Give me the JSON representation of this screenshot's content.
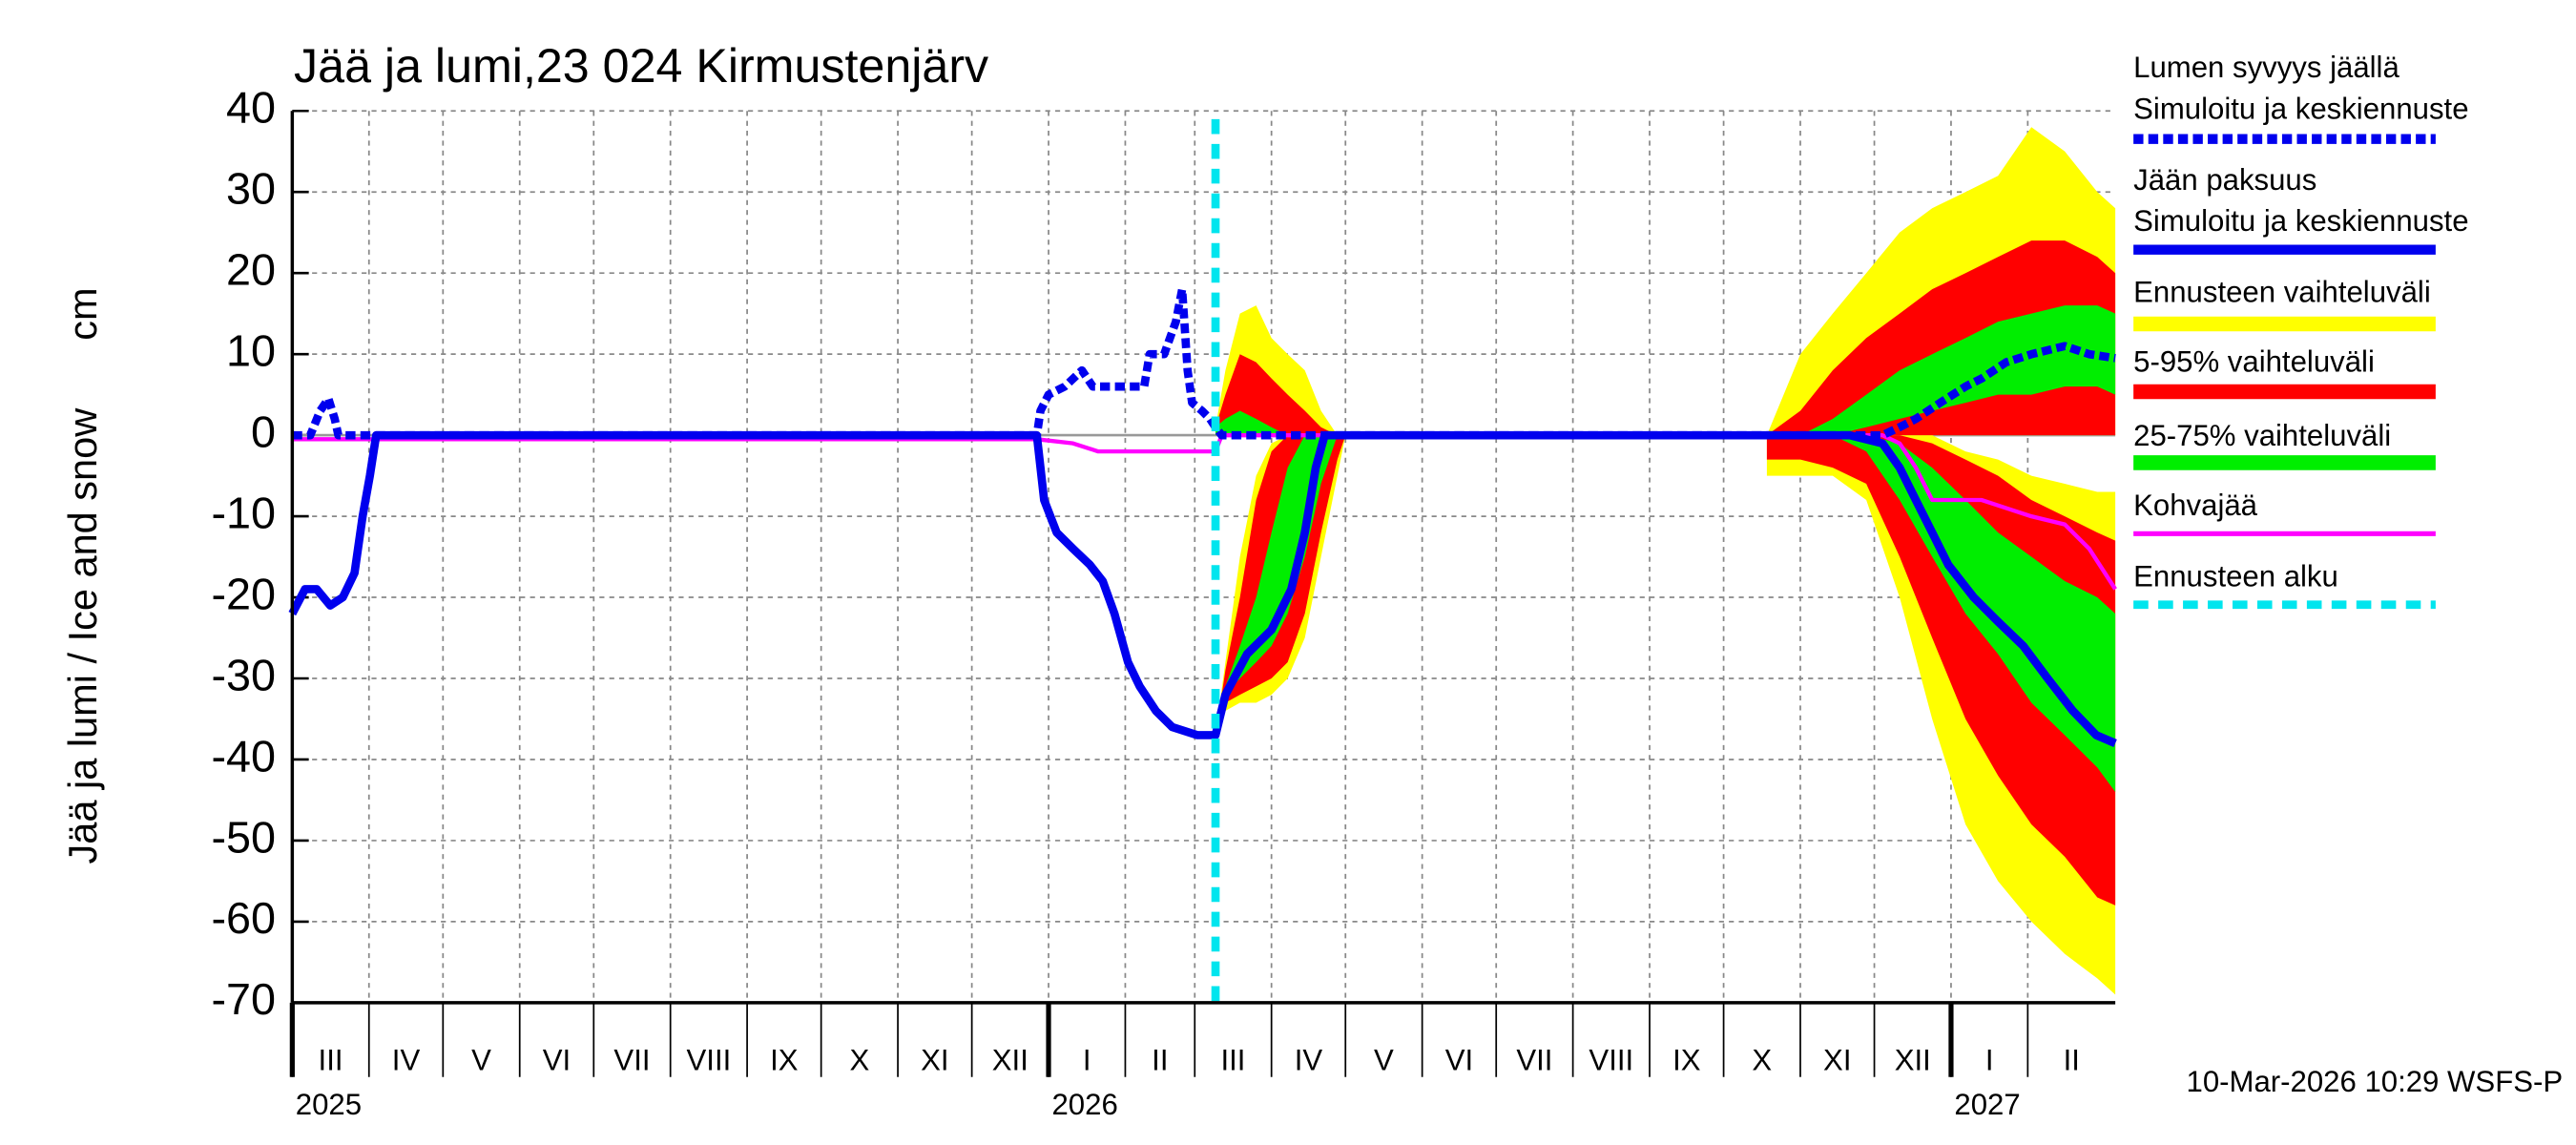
{
  "chart_data": {
    "type": "line",
    "title": "Jää ja lumi,23 024 Kirmustenjärv",
    "ylabel": "Jää ja lumi / Ice and snow",
    "yunit": "cm",
    "footer": "10-Mar-2026 10:29 WSFS-P",
    "xlim": [
      2025.162,
      2027.182
    ],
    "ylim": [
      -70,
      40
    ],
    "yticks": [
      -70,
      -60,
      -50,
      -40,
      -30,
      -20,
      -10,
      0,
      10,
      20,
      30,
      40
    ],
    "grid": true,
    "xticks": [
      {
        "value": 2025.162,
        "label": "III"
      },
      {
        "value": 2025.247,
        "label": "IV"
      },
      {
        "value": 2025.329,
        "label": "V"
      },
      {
        "value": 2025.414,
        "label": "VI"
      },
      {
        "value": 2025.496,
        "label": "VII"
      },
      {
        "value": 2025.581,
        "label": "VIII"
      },
      {
        "value": 2025.666,
        "label": "IX"
      },
      {
        "value": 2025.748,
        "label": "X"
      },
      {
        "value": 2025.833,
        "label": "XI"
      },
      {
        "value": 2025.915,
        "label": "XII"
      },
      {
        "value": 2026.0,
        "label": "I"
      },
      {
        "value": 2026.085,
        "label": "II"
      },
      {
        "value": 2026.162,
        "label": "III"
      },
      {
        "value": 2026.247,
        "label": "IV"
      },
      {
        "value": 2026.329,
        "label": "V"
      },
      {
        "value": 2026.414,
        "label": "VI"
      },
      {
        "value": 2026.496,
        "label": "VII"
      },
      {
        "value": 2026.581,
        "label": "VIII"
      },
      {
        "value": 2026.666,
        "label": "IX"
      },
      {
        "value": 2026.748,
        "label": "X"
      },
      {
        "value": 2026.833,
        "label": "XI"
      },
      {
        "value": 2026.915,
        "label": "XII"
      },
      {
        "value": 2027.0,
        "label": "I"
      },
      {
        "value": 2027.085,
        "label": "II"
      }
    ],
    "year_ticks": [
      {
        "value": 2025.162,
        "label": "2025"
      },
      2026,
      2027
    ],
    "forecast_start": {
      "name": "Ennusteen alku",
      "x": 2026.185,
      "color": "#00e5ee"
    },
    "series": [
      {
        "name": "Lumen syvyys jäällä",
        "subname": "Simuloitu ja keskiennuste",
        "kind": "line",
        "dashed": true,
        "thick": true,
        "color": "#0000ee",
        "x": [
          2025.162,
          2025.182,
          2025.193,
          2025.202,
          2025.209,
          2025.213,
          2025.987,
          2025.991,
          2026.0,
          2026.018,
          2026.037,
          2026.049,
          2026.06,
          2026.082,
          2026.106,
          2026.112,
          2026.128,
          2026.141,
          2026.148,
          2026.154,
          2026.159,
          2026.17,
          2026.179,
          2026.185,
          2026.192,
          2026.924,
          2026.943,
          2026.961,
          2026.988,
          2027.016,
          2027.034,
          2027.061,
          2027.089,
          2027.126,
          2027.153,
          2027.182
        ],
        "values": [
          0,
          0,
          3,
          4.5,
          2,
          0,
          0,
          3,
          5,
          6,
          8,
          6,
          6,
          6,
          6,
          10,
          10,
          14,
          18,
          8,
          4,
          3,
          2,
          1,
          0,
          0,
          1,
          2,
          4,
          6,
          7,
          9,
          10,
          11,
          10,
          9.5
        ]
      },
      {
        "name": "Jään paksuus",
        "subname": "Simuloitu ja keskiennuste",
        "kind": "line",
        "dashed": false,
        "thick": true,
        "color": "#0000ee",
        "x": [
          2025.162,
          2025.176,
          2025.189,
          2025.204,
          2025.218,
          2025.231,
          2025.24,
          2025.248,
          2025.255,
          2025.987,
          2025.995,
          2026.009,
          2026.027,
          2026.046,
          2026.06,
          2026.073,
          2026.088,
          2026.101,
          2026.119,
          2026.137,
          2026.165,
          2026.185,
          2026.196,
          2026.22,
          2026.247,
          2026.269,
          2026.284,
          2026.296,
          2026.306,
          2026.888,
          2026.924,
          2026.943,
          2026.961,
          2026.979,
          2026.997,
          2027.025,
          2027.052,
          2027.08,
          2027.107,
          2027.135,
          2027.161,
          2027.182
        ],
        "values": [
          -22,
          -19,
          -19,
          -21,
          -20,
          -17,
          -10,
          -5,
          0,
          0,
          -8,
          -12,
          -14,
          -16,
          -18,
          -22,
          -28,
          -31,
          -34,
          -36,
          -37,
          -37,
          -32,
          -27,
          -24,
          -19,
          -12,
          -4,
          0,
          0,
          -1,
          -4,
          -8,
          -12,
          -16,
          -20,
          -23,
          -26,
          -30,
          -34,
          -37,
          -38
        ]
      },
      {
        "name": "Ennusteen vaihteluväli",
        "kind": "band",
        "color": "#ffff00",
        "ranges": [
          {
            "x": [
              2026.185,
              2026.196,
              2026.212,
              2026.23,
              2026.247,
              2026.265,
              2026.284,
              2026.302,
              2026.32,
              2026.329
            ],
            "lower": [
              0,
              0,
              0,
              0,
              0,
              0,
              0,
              0,
              0,
              0
            ],
            "upper": [
              1,
              8,
              15,
              16,
              12,
              10,
              8,
              3,
              0,
              0
            ]
          },
          {
            "x": [
              2026.185,
              2026.196,
              2026.212,
              2026.23,
              2026.247,
              2026.265,
              2026.284,
              2026.302,
              2026.32,
              2026.329
            ],
            "lower": [
              -37,
              -34,
              -33,
              -33,
              -32,
              -30,
              -25,
              -15,
              -5,
              0
            ],
            "upper": [
              -37,
              -28,
              -15,
              -5,
              -1,
              0,
              0,
              0,
              0,
              0
            ]
          },
          {
            "x": [
              2026.796,
              2026.833,
              2026.869,
              2026.906,
              2026.943,
              2026.979,
              2027.016,
              2027.052,
              2027.089,
              2027.126,
              2027.162,
              2027.182
            ],
            "lower": [
              0,
              0,
              0,
              0,
              0,
              0,
              0,
              0,
              0,
              0,
              0,
              0
            ],
            "upper": [
              0,
              10,
              15,
              20,
              25,
              28,
              30,
              32,
              38,
              35,
              30,
              28
            ]
          },
          {
            "x": [
              2026.796,
              2026.833,
              2026.869,
              2026.906,
              2026.943,
              2026.979,
              2027.016,
              2027.052,
              2027.089,
              2027.126,
              2027.162,
              2027.182
            ],
            "lower": [
              -5,
              -5,
              -5,
              -8,
              -20,
              -35,
              -48,
              -55,
              -60,
              -64,
              -67,
              -69
            ],
            "upper": [
              0,
              0,
              0,
              0,
              0,
              0,
              -2,
              -3,
              -5,
              -6,
              -7,
              -7
            ]
          }
        ]
      },
      {
        "name": "5-95% vaihteluväli",
        "kind": "band",
        "color": "#ff0000",
        "ranges": [
          {
            "x": [
              2026.185,
              2026.196,
              2026.212,
              2026.23,
              2026.247,
              2026.265,
              2026.284,
              2026.302,
              2026.32,
              2026.329
            ],
            "lower": [
              0,
              0,
              0,
              0,
              0,
              0,
              0,
              0,
              0,
              0
            ],
            "upper": [
              1,
              5,
              10,
              9,
              7,
              5,
              3,
              1,
              0,
              0
            ]
          },
          {
            "x": [
              2026.185,
              2026.196,
              2026.212,
              2026.23,
              2026.247,
              2026.265,
              2026.284,
              2026.302,
              2026.32,
              2026.329
            ],
            "lower": [
              -37,
              -33,
              -32,
              -31,
              -30,
              -28,
              -22,
              -12,
              -3,
              0
            ],
            "upper": [
              -37,
              -29,
              -20,
              -8,
              -2,
              0,
              0,
              0,
              0,
              0
            ]
          },
          {
            "x": [
              2026.796,
              2026.833,
              2026.869,
              2026.906,
              2026.943,
              2026.979,
              2027.016,
              2027.052,
              2027.089,
              2027.126,
              2027.162,
              2027.182
            ],
            "lower": [
              0,
              0,
              0,
              0,
              0,
              0,
              0,
              0,
              0,
              0,
              0,
              0
            ],
            "upper": [
              0,
              3,
              8,
              12,
              15,
              18,
              20,
              22,
              24,
              24,
              22,
              20
            ]
          },
          {
            "x": [
              2026.796,
              2026.833,
              2026.869,
              2026.906,
              2026.943,
              2026.979,
              2027.016,
              2027.052,
              2027.089,
              2027.126,
              2027.162,
              2027.182
            ],
            "lower": [
              -3,
              -3,
              -4,
              -6,
              -15,
              -25,
              -35,
              -42,
              -48,
              -52,
              -57,
              -58
            ],
            "upper": [
              0,
              0,
              0,
              0,
              0,
              -1,
              -3,
              -5,
              -8,
              -10,
              -12,
              -13
            ]
          }
        ]
      },
      {
        "name": "25-75% vaihteluväli",
        "kind": "band",
        "color": "#00ee00",
        "ranges": [
          {
            "x": [
              2026.185,
              2026.196,
              2026.212,
              2026.23,
              2026.247,
              2026.265,
              2026.284,
              2026.302,
              2026.32,
              2026.329
            ],
            "lower": [
              0,
              0,
              0,
              0,
              0,
              0,
              0,
              0,
              0,
              0
            ],
            "upper": [
              1,
              2,
              3,
              2,
              1,
              0,
              0,
              0,
              0,
              0
            ]
          },
          {
            "x": [
              2026.185,
              2026.196,
              2026.212,
              2026.23,
              2026.247,
              2026.265,
              2026.284,
              2026.302,
              2026.32,
              2026.329
            ],
            "lower": [
              -37,
              -32,
              -30,
              -28,
              -26,
              -22,
              -15,
              -6,
              0,
              0
            ],
            "upper": [
              -37,
              -31,
              -26,
              -20,
              -12,
              -4,
              0,
              0,
              0,
              0
            ]
          },
          {
            "x": [
              2026.796,
              2026.833,
              2026.869,
              2026.906,
              2026.943,
              2026.979,
              2027.016,
              2027.052,
              2027.089,
              2027.126,
              2027.162,
              2027.182
            ],
            "lower": [
              0,
              0,
              0,
              1,
              2,
              3,
              4,
              5,
              5,
              6,
              6,
              5
            ],
            "upper": [
              0,
              0,
              2,
              5,
              8,
              10,
              12,
              14,
              15,
              16,
              16,
              15
            ]
          },
          {
            "x": [
              2026.796,
              2026.833,
              2026.869,
              2026.906,
              2026.943,
              2026.979,
              2027.016,
              2027.052,
              2027.089,
              2027.126,
              2027.162,
              2027.182
            ],
            "lower": [
              0,
              0,
              0,
              -2,
              -8,
              -15,
              -22,
              -27,
              -33,
              -37,
              -41,
              -44
            ],
            "upper": [
              0,
              0,
              0,
              0,
              -1,
              -4,
              -8,
              -12,
              -15,
              -18,
              -20,
              -22
            ]
          }
        ]
      },
      {
        "name": "Kohvajää",
        "kind": "line",
        "dashed": false,
        "thick": false,
        "color": "#ff00ff",
        "x": [
          2025.162,
          2025.987,
          2026.027,
          2026.055,
          2026.156,
          2026.185,
          2026.192,
          2026.924,
          2026.943,
          2026.961,
          2026.979,
          2027.034,
          2027.061,
          2027.089,
          2027.126,
          2027.153,
          2027.182
        ],
        "values": [
          -0.5,
          -0.5,
          -1,
          -2,
          -2,
          -2,
          0,
          0,
          -1,
          -4,
          -8,
          -8,
          -9,
          -10,
          -11,
          -14,
          -19
        ]
      }
    ]
  }
}
